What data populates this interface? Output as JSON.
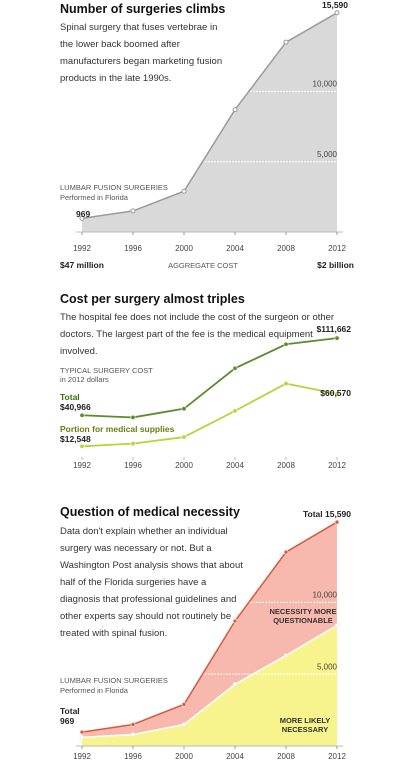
{
  "chart_data": [
    {
      "type": "area",
      "title": "Number of surgeries climbs",
      "subtitle": "Spinal surgery that fuses vertebrae in the lower back boomed after manufacturers began marketing fusion products in the late 1990s.",
      "y_label": "LUMBAR FUSION SURGERIES",
      "y_sublabel": "Performed in Florida",
      "x": [
        1992,
        1996,
        2000,
        2004,
        2008,
        2012
      ],
      "xlim": [
        1992,
        2012
      ],
      "values": [
        969,
        1500,
        2900,
        8700,
        13500,
        15590
      ],
      "value_labels": [
        "969",
        null,
        null,
        null,
        null,
        "15,590"
      ],
      "color": "#d9d9d9",
      "line_color": "#9a9a9a",
      "ylim": [
        0,
        16500
      ],
      "yticks": [
        {
          "value": 5000,
          "label": "5,000"
        },
        {
          "value": 10000,
          "label": "10,000"
        }
      ],
      "grid": true,
      "footer": {
        "left": "$47 million",
        "center": "AGGREGATE COST",
        "right": "$2 billion"
      }
    },
    {
      "type": "line",
      "title": "Cost per surgery almost triples",
      "subtitle": "The hospital fee does not include the cost of the surgeon or other doctors. The largest part of the fee is the medical equipment involved.",
      "y_label": "TYPICAL SURGERY COST",
      "y_sublabel": "in 2012 dollars",
      "x": [
        1992,
        1996,
        2000,
        2004,
        2008,
        2012
      ],
      "xlim": [
        1992,
        2012
      ],
      "ylim": [
        0,
        120000
      ],
      "series": [
        {
          "name": "Total",
          "color": "#5b8c2a",
          "values": [
            40966,
            39000,
            47000,
            84000,
            106000,
            111662
          ],
          "value_labels": [
            "$40,966",
            null,
            null,
            null,
            null,
            "$111,662"
          ]
        },
        {
          "name": "Portion for medical supplies",
          "color": "#b8d43a",
          "values": [
            12548,
            15000,
            21000,
            45000,
            70000,
            60570
          ],
          "value_labels": [
            "$12,548",
            null,
            null,
            null,
            null,
            "$60,570"
          ]
        }
      ]
    },
    {
      "type": "stacked_area",
      "title": "Question of medical necessity",
      "subtitle": "Data don't explain whether an individual surgery was necessary or not. But a Washington Post analysis shows that about half of the Florida surgeries have a diagnosis that professional guidelines and other experts say should not routinely be treated with spinal fusion.",
      "y_label": "LUMBAR FUSION SURGERIES",
      "y_sublabel": "Performed in Florida",
      "x": [
        1992,
        1996,
        2000,
        2004,
        2008,
        2012
      ],
      "xlim": [
        1992,
        2012
      ],
      "ylim": [
        0,
        16500
      ],
      "yticks": [
        {
          "value": 5000,
          "label": "5,000"
        },
        {
          "value": 10000,
          "label": "10,000"
        }
      ],
      "grid": true,
      "series": [
        {
          "name": "MORE LIKELY NECESSARY",
          "color": "#f7f48e",
          "line_color": "#ffffff",
          "values": [
            600,
            800,
            1500,
            4300,
            6300,
            8400
          ]
        },
        {
          "name": "NECESSITY MORE QUESTIONABLE",
          "color": "#f7b8ae",
          "line_color": "#d9573d",
          "values": [
            369,
            700,
            1400,
            4400,
            7200,
            7190
          ]
        }
      ],
      "annotations": [
        "Total",
        "969",
        "Total 15,590"
      ]
    }
  ]
}
